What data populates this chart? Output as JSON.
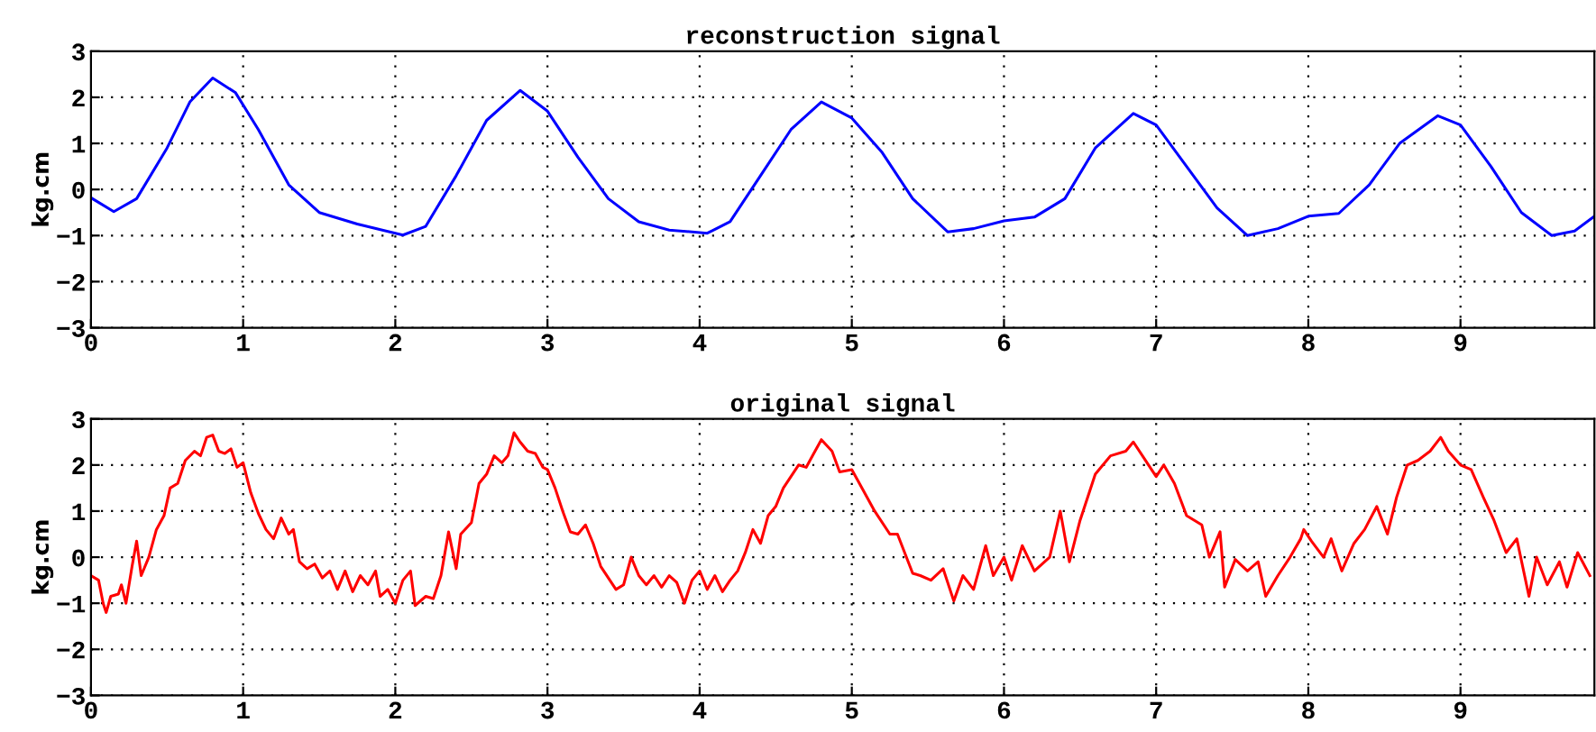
{
  "chart_data": [
    {
      "type": "line",
      "title": "reconstruction signal",
      "ylabel": "kg.cm",
      "xlim": [
        0,
        9.88
      ],
      "ylim": [
        -3,
        3
      ],
      "xticks": [
        0,
        1,
        2,
        3,
        4,
        5,
        6,
        7,
        8,
        9
      ],
      "yticks": [
        -3,
        -2,
        -1,
        0,
        1,
        2,
        3
      ],
      "grid": true,
      "line_style": "solid",
      "marker": "none",
      "series": [
        {
          "color": "#0000ff",
          "x": [
            0,
            0.15,
            0.3,
            0.5,
            0.65,
            0.8,
            0.95,
            1.1,
            1.3,
            1.5,
            1.75,
            2.05,
            2.2,
            2.4,
            2.6,
            2.82,
            3.0,
            3.2,
            3.4,
            3.6,
            3.8,
            4.05,
            4.2,
            4.4,
            4.6,
            4.8,
            5.0,
            5.2,
            5.4,
            5.63,
            5.8,
            6.0,
            6.2,
            6.4,
            6.6,
            6.85,
            7.0,
            7.2,
            7.4,
            7.6,
            7.8,
            8.0,
            8.2,
            8.4,
            8.6,
            8.85,
            9.0,
            9.2,
            9.4,
            9.6,
            9.75,
            9.88
          ],
          "values": [
            -0.18,
            -0.48,
            -0.2,
            0.9,
            1.9,
            2.42,
            2.1,
            1.3,
            0.1,
            -0.5,
            -0.75,
            -0.99,
            -0.8,
            0.3,
            1.5,
            2.15,
            1.7,
            0.7,
            -0.2,
            -0.7,
            -0.88,
            -0.95,
            -0.7,
            0.3,
            1.3,
            1.9,
            1.55,
            0.8,
            -0.2,
            -0.92,
            -0.85,
            -0.68,
            -0.6,
            -0.2,
            0.9,
            1.65,
            1.4,
            0.5,
            -0.4,
            -1.0,
            -0.85,
            -0.58,
            -0.52,
            0.1,
            1.0,
            1.6,
            1.4,
            0.5,
            -0.5,
            -1.0,
            -0.9,
            -0.58
          ]
        }
      ]
    },
    {
      "type": "line",
      "title": "original signal",
      "ylabel": "kg.cm",
      "xlim": [
        0,
        9.88
      ],
      "ylim": [
        -3,
        3
      ],
      "xticks": [
        0,
        1,
        2,
        3,
        4,
        5,
        6,
        7,
        8,
        9
      ],
      "yticks": [
        -3,
        -2,
        -1,
        0,
        1,
        2,
        3
      ],
      "grid": true,
      "line_style": "solid",
      "marker": "none",
      "series": [
        {
          "color": "#ff0000",
          "x": [
            0,
            0.05,
            0.08,
            0.1,
            0.13,
            0.18,
            0.2,
            0.23,
            0.27,
            0.3,
            0.33,
            0.38,
            0.43,
            0.48,
            0.52,
            0.57,
            0.62,
            0.68,
            0.72,
            0.76,
            0.8,
            0.84,
            0.88,
            0.92,
            0.96,
            1.0,
            1.05,
            1.1,
            1.15,
            1.2,
            1.25,
            1.3,
            1.33,
            1.37,
            1.42,
            1.47,
            1.52,
            1.57,
            1.62,
            1.67,
            1.72,
            1.77,
            1.82,
            1.87,
            1.9,
            1.95,
            2.0,
            2.05,
            2.1,
            2.13,
            2.2,
            2.25,
            2.3,
            2.35,
            2.4,
            2.43,
            2.5,
            2.55,
            2.6,
            2.65,
            2.7,
            2.74,
            2.78,
            2.82,
            2.87,
            2.92,
            2.97,
            3.0,
            3.05,
            3.1,
            3.15,
            3.2,
            3.25,
            3.3,
            3.35,
            3.45,
            3.5,
            3.55,
            3.6,
            3.65,
            3.7,
            3.75,
            3.8,
            3.85,
            3.9,
            3.95,
            4.0,
            4.05,
            4.1,
            4.15,
            4.2,
            4.25,
            4.3,
            4.35,
            4.4,
            4.45,
            4.5,
            4.55,
            4.6,
            4.65,
            4.7,
            4.75,
            4.8,
            4.87,
            4.92,
            5.0,
            5.05,
            5.15,
            5.25,
            5.3,
            5.4,
            5.45,
            5.52,
            5.6,
            5.67,
            5.73,
            5.8,
            5.88,
            5.93,
            6.0,
            6.05,
            6.12,
            6.2,
            6.3,
            6.37,
            6.43,
            6.5,
            6.6,
            6.7,
            6.8,
            6.85,
            6.95,
            7.0,
            7.05,
            7.12,
            7.2,
            7.3,
            7.35,
            7.42,
            7.45,
            7.52,
            7.6,
            7.67,
            7.72,
            7.8,
            7.88,
            7.95,
            7.97,
            8.02,
            8.1,
            8.15,
            8.22,
            8.3,
            8.37,
            8.45,
            8.52,
            8.58,
            8.65,
            8.72,
            8.8,
            8.87,
            8.92,
            9.0,
            9.07,
            9.15,
            9.22,
            9.3,
            9.37,
            9.45,
            9.5,
            9.57,
            9.65,
            9.7,
            9.77,
            9.85
          ],
          "values": [
            -0.4,
            -0.5,
            -1.0,
            -1.2,
            -0.85,
            -0.8,
            -0.6,
            -1.0,
            -0.2,
            0.35,
            -0.4,
            0.0,
            0.6,
            0.9,
            1.5,
            1.6,
            2.1,
            2.3,
            2.2,
            2.6,
            2.65,
            2.3,
            2.25,
            2.35,
            1.95,
            2.05,
            1.4,
            0.95,
            0.6,
            0.4,
            0.85,
            0.5,
            0.6,
            -0.1,
            -0.25,
            -0.15,
            -0.45,
            -0.3,
            -0.7,
            -0.3,
            -0.75,
            -0.4,
            -0.6,
            -0.3,
            -0.85,
            -0.7,
            -1.0,
            -0.5,
            -0.3,
            -1.05,
            -0.85,
            -0.9,
            -0.4,
            0.55,
            -0.25,
            0.5,
            0.75,
            1.6,
            1.8,
            2.2,
            2.05,
            2.2,
            2.7,
            2.5,
            2.3,
            2.25,
            1.95,
            1.9,
            1.5,
            1.0,
            0.55,
            0.5,
            0.7,
            0.3,
            -0.2,
            -0.7,
            -0.6,
            0.0,
            -0.4,
            -0.6,
            -0.4,
            -0.65,
            -0.4,
            -0.55,
            -1.0,
            -0.5,
            -0.3,
            -0.7,
            -0.4,
            -0.75,
            -0.5,
            -0.3,
            0.1,
            0.6,
            0.3,
            0.9,
            1.1,
            1.5,
            1.75,
            2.0,
            1.95,
            2.25,
            2.55,
            2.3,
            1.85,
            1.9,
            1.6,
            1.0,
            0.5,
            0.5,
            -0.35,
            -0.4,
            -0.5,
            -0.25,
            -0.95,
            -0.4,
            -0.7,
            0.25,
            -0.4,
            0.0,
            -0.5,
            0.25,
            -0.3,
            0.0,
            1.0,
            -0.1,
            0.8,
            1.8,
            2.2,
            2.3,
            2.5,
            2.0,
            1.75,
            2.0,
            1.6,
            0.9,
            0.7,
            0.0,
            0.55,
            -0.65,
            -0.05,
            -0.3,
            -0.1,
            -0.85,
            -0.4,
            0.0,
            0.4,
            0.6,
            0.35,
            0.0,
            0.4,
            -0.3,
            0.3,
            0.6,
            1.1,
            0.5,
            1.3,
            2.0,
            2.1,
            2.3,
            2.6,
            2.3,
            2.0,
            1.9,
            1.3,
            0.8,
            0.1,
            0.4,
            -0.85,
            0.0,
            -0.6,
            -0.1,
            -0.65,
            0.1,
            -0.4
          ]
        }
      ]
    }
  ]
}
